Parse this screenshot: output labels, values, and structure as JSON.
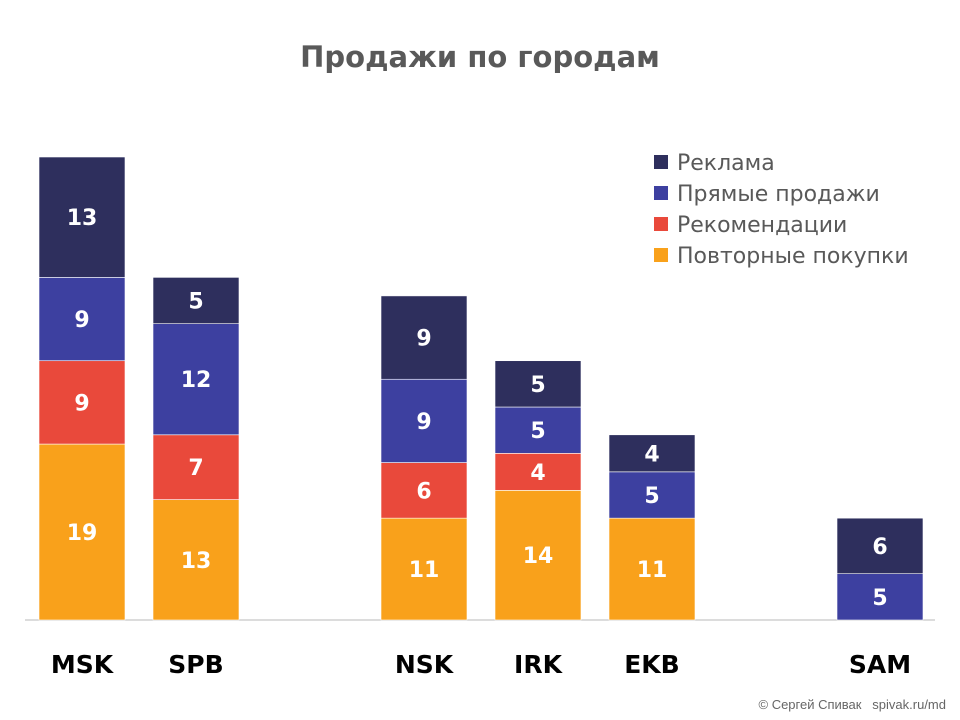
{
  "chart_data": {
    "type": "bar",
    "stacked": true,
    "title": "Продажи по городам",
    "categories": [
      "MSK",
      "SPB",
      "",
      "NSK",
      "IRK",
      "EKB",
      "",
      "SAM"
    ],
    "series": [
      {
        "name": "Повторные покупки",
        "color": "#f9a11b",
        "values": [
          19,
          13,
          null,
          11,
          14,
          11,
          null,
          null
        ]
      },
      {
        "name": "Рекомендации",
        "color": "#e9493b",
        "values": [
          9,
          7,
          null,
          6,
          4,
          null,
          null,
          null
        ]
      },
      {
        "name": "Прямые продажи",
        "color": "#3d40a0",
        "values": [
          9,
          12,
          null,
          9,
          5,
          5,
          null,
          5
        ]
      },
      {
        "name": "Реклама",
        "color": "#2e2f5d",
        "values": [
          13,
          5,
          null,
          9,
          5,
          4,
          null,
          6
        ]
      }
    ],
    "legend_order": [
      "Реклама",
      "Прямые продажи",
      "Рекомендации",
      "Повторные покупки"
    ],
    "legend_placement": "top-right",
    "data_labels": true,
    "ylim": [
      0,
      50
    ],
    "grid": false
  },
  "credit": "© Сергей Спивак   spivak.ru/md"
}
